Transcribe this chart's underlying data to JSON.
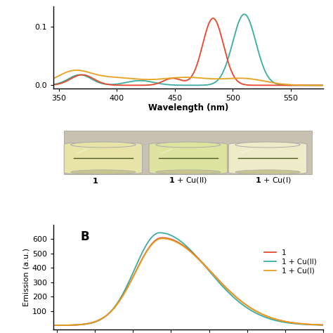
{
  "uv_xlim": [
    345,
    578
  ],
  "uv_ylim": [
    -0.005,
    0.135
  ],
  "uv_xticks": [
    350,
    400,
    450,
    500,
    550
  ],
  "uv_yticks": [
    0,
    0.1
  ],
  "uv_xlabel": "Wavelength (nm)",
  "em_xlim": [
    345,
    700
  ],
  "em_ylim": [
    -30,
    700
  ],
  "em_yticks": [
    100,
    200,
    300,
    400,
    500,
    600
  ],
  "em_ylabel": "Emission (a.u.)",
  "label_B": "B",
  "colors": {
    "compound1": "#e8472a",
    "cu2": "#3aada0",
    "cu1": "#e8a020"
  },
  "legend_labels": [
    "1",
    "1 + Cu(II)",
    "1 + Cu(I)"
  ]
}
